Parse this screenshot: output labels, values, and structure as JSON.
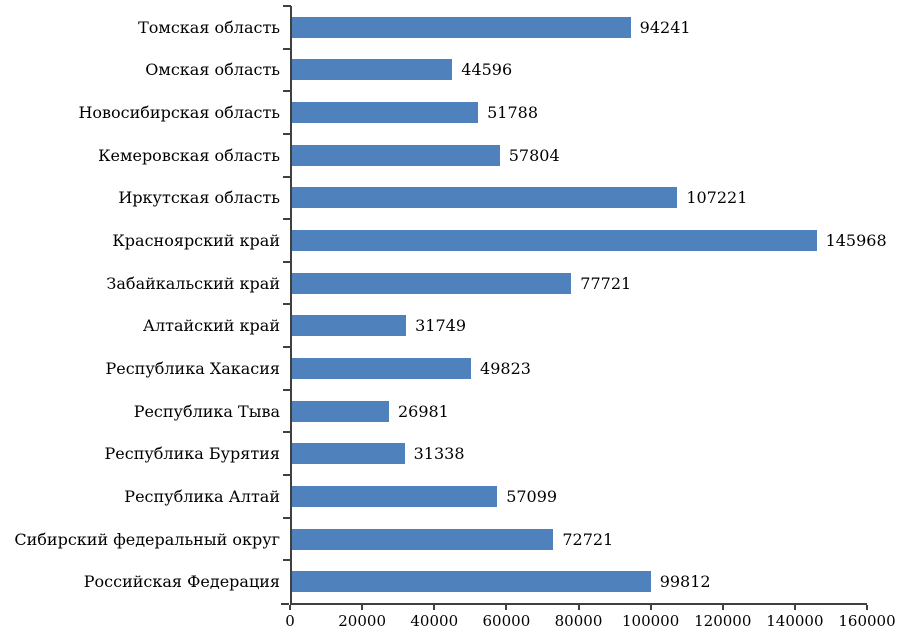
{
  "chart_data": {
    "type": "bar",
    "orientation": "horizontal",
    "title": "",
    "xlabel": "",
    "ylabel": "",
    "categories": [
      "Томская область",
      "Омская область",
      "Новосибирская область",
      "Кемеровская область",
      "Иркутская область",
      "Красноярский край",
      "Забайкальский край",
      "Алтайский край",
      "Республика Хакасия",
      "Республика Тыва",
      "Республика Бурятия",
      "Республика Алтай",
      "Сибирский федеральный округ",
      "Российская Федерация"
    ],
    "values": [
      94241,
      44596,
      51788,
      57804,
      107221,
      145968,
      77721,
      31749,
      49823,
      26981,
      31338,
      57099,
      72721,
      99812
    ],
    "data_labels": [
      "94241",
      "44596",
      "51788",
      "57804",
      "107221",
      "145968",
      "77721",
      "31749",
      "49823",
      "26981",
      "31338",
      "57099",
      "72721",
      "99812"
    ],
    "xlim": [
      0,
      160000
    ],
    "x_ticks": [
      0,
      20000,
      40000,
      60000,
      80000,
      100000,
      120000,
      140000,
      160000
    ],
    "x_tick_labels": [
      "0",
      "20000",
      "40000",
      "60000",
      "80000",
      "100000",
      "120000",
      "140000",
      "160000"
    ],
    "grid": false,
    "legend": false,
    "bar_color": "#4F81BD",
    "axis_color": "#404040",
    "background_color": "#FFFFFF"
  }
}
